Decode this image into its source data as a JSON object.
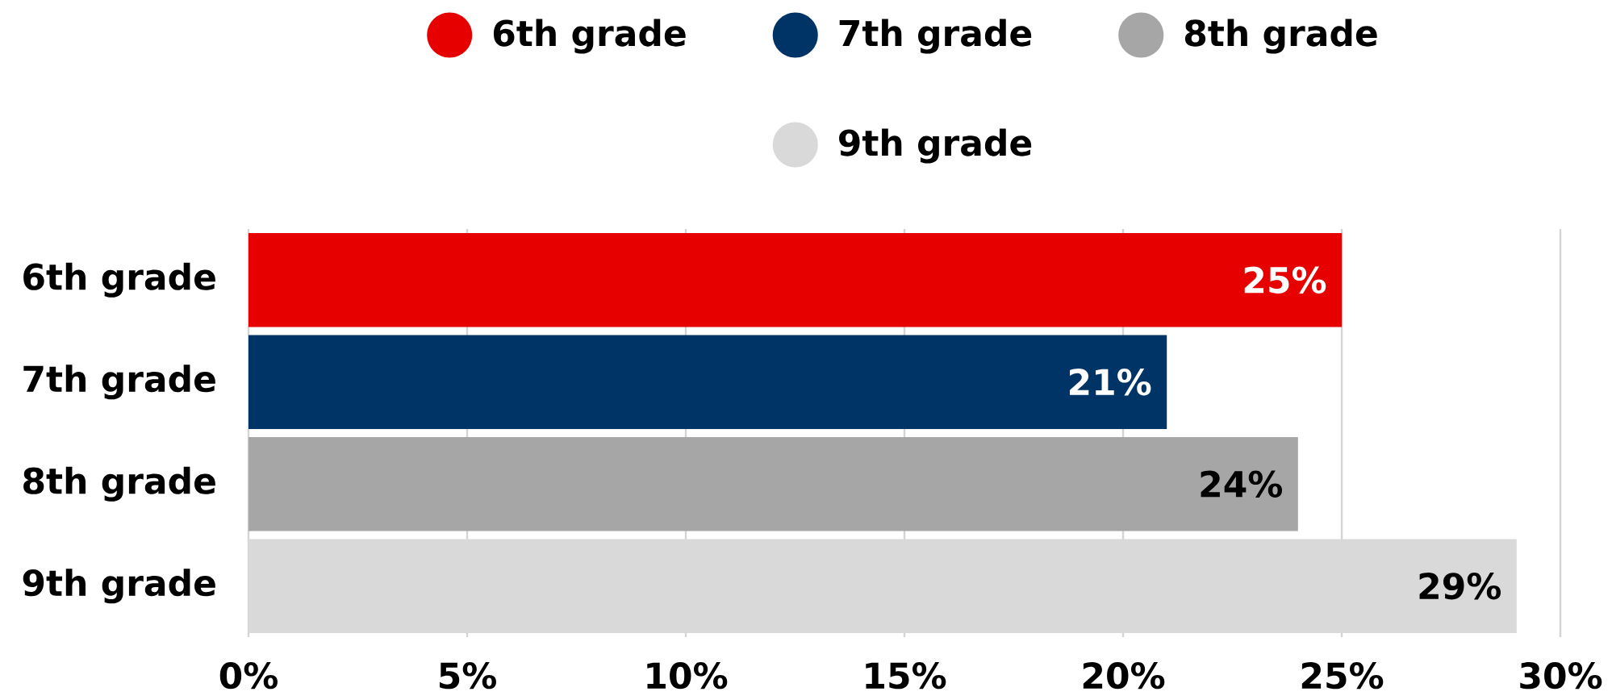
{
  "chart_data": {
    "type": "bar",
    "orientation": "horizontal",
    "stacked": true,
    "categories": [
      "6th grade",
      "7th grade",
      "8th grade",
      "9th grade"
    ],
    "series": [
      {
        "name": "6th grade",
        "color": "#e60000",
        "values": [
          25,
          null,
          null,
          null
        ],
        "value_labels": [
          "25%",
          null,
          null,
          null
        ]
      },
      {
        "name": "7th grade",
        "color": "#003366",
        "values": [
          null,
          21,
          null,
          null
        ],
        "value_labels": [
          null,
          "21%",
          null,
          null
        ]
      },
      {
        "name": "8th grade",
        "color": "#a6a6a6",
        "values": [
          null,
          null,
          24,
          null
        ],
        "value_labels": [
          null,
          null,
          "24%",
          null
        ]
      },
      {
        "name": "9th grade",
        "color": "#d9d9d9",
        "values": [
          null,
          null,
          null,
          29
        ],
        "value_labels": [
          null,
          null,
          null,
          "29%"
        ]
      }
    ],
    "xlim": [
      0,
      30
    ],
    "xticks": [
      {
        "value": 0,
        "label": "0%"
      },
      {
        "value": 5,
        "label": "5%"
      },
      {
        "value": 10,
        "label": "10%"
      },
      {
        "value": 15,
        "label": "15%"
      },
      {
        "value": 20,
        "label": "20%"
      },
      {
        "value": 25,
        "label": "25%"
      },
      {
        "value": 30,
        "label": "30%"
      }
    ],
    "grid": "x",
    "legend": "top"
  }
}
